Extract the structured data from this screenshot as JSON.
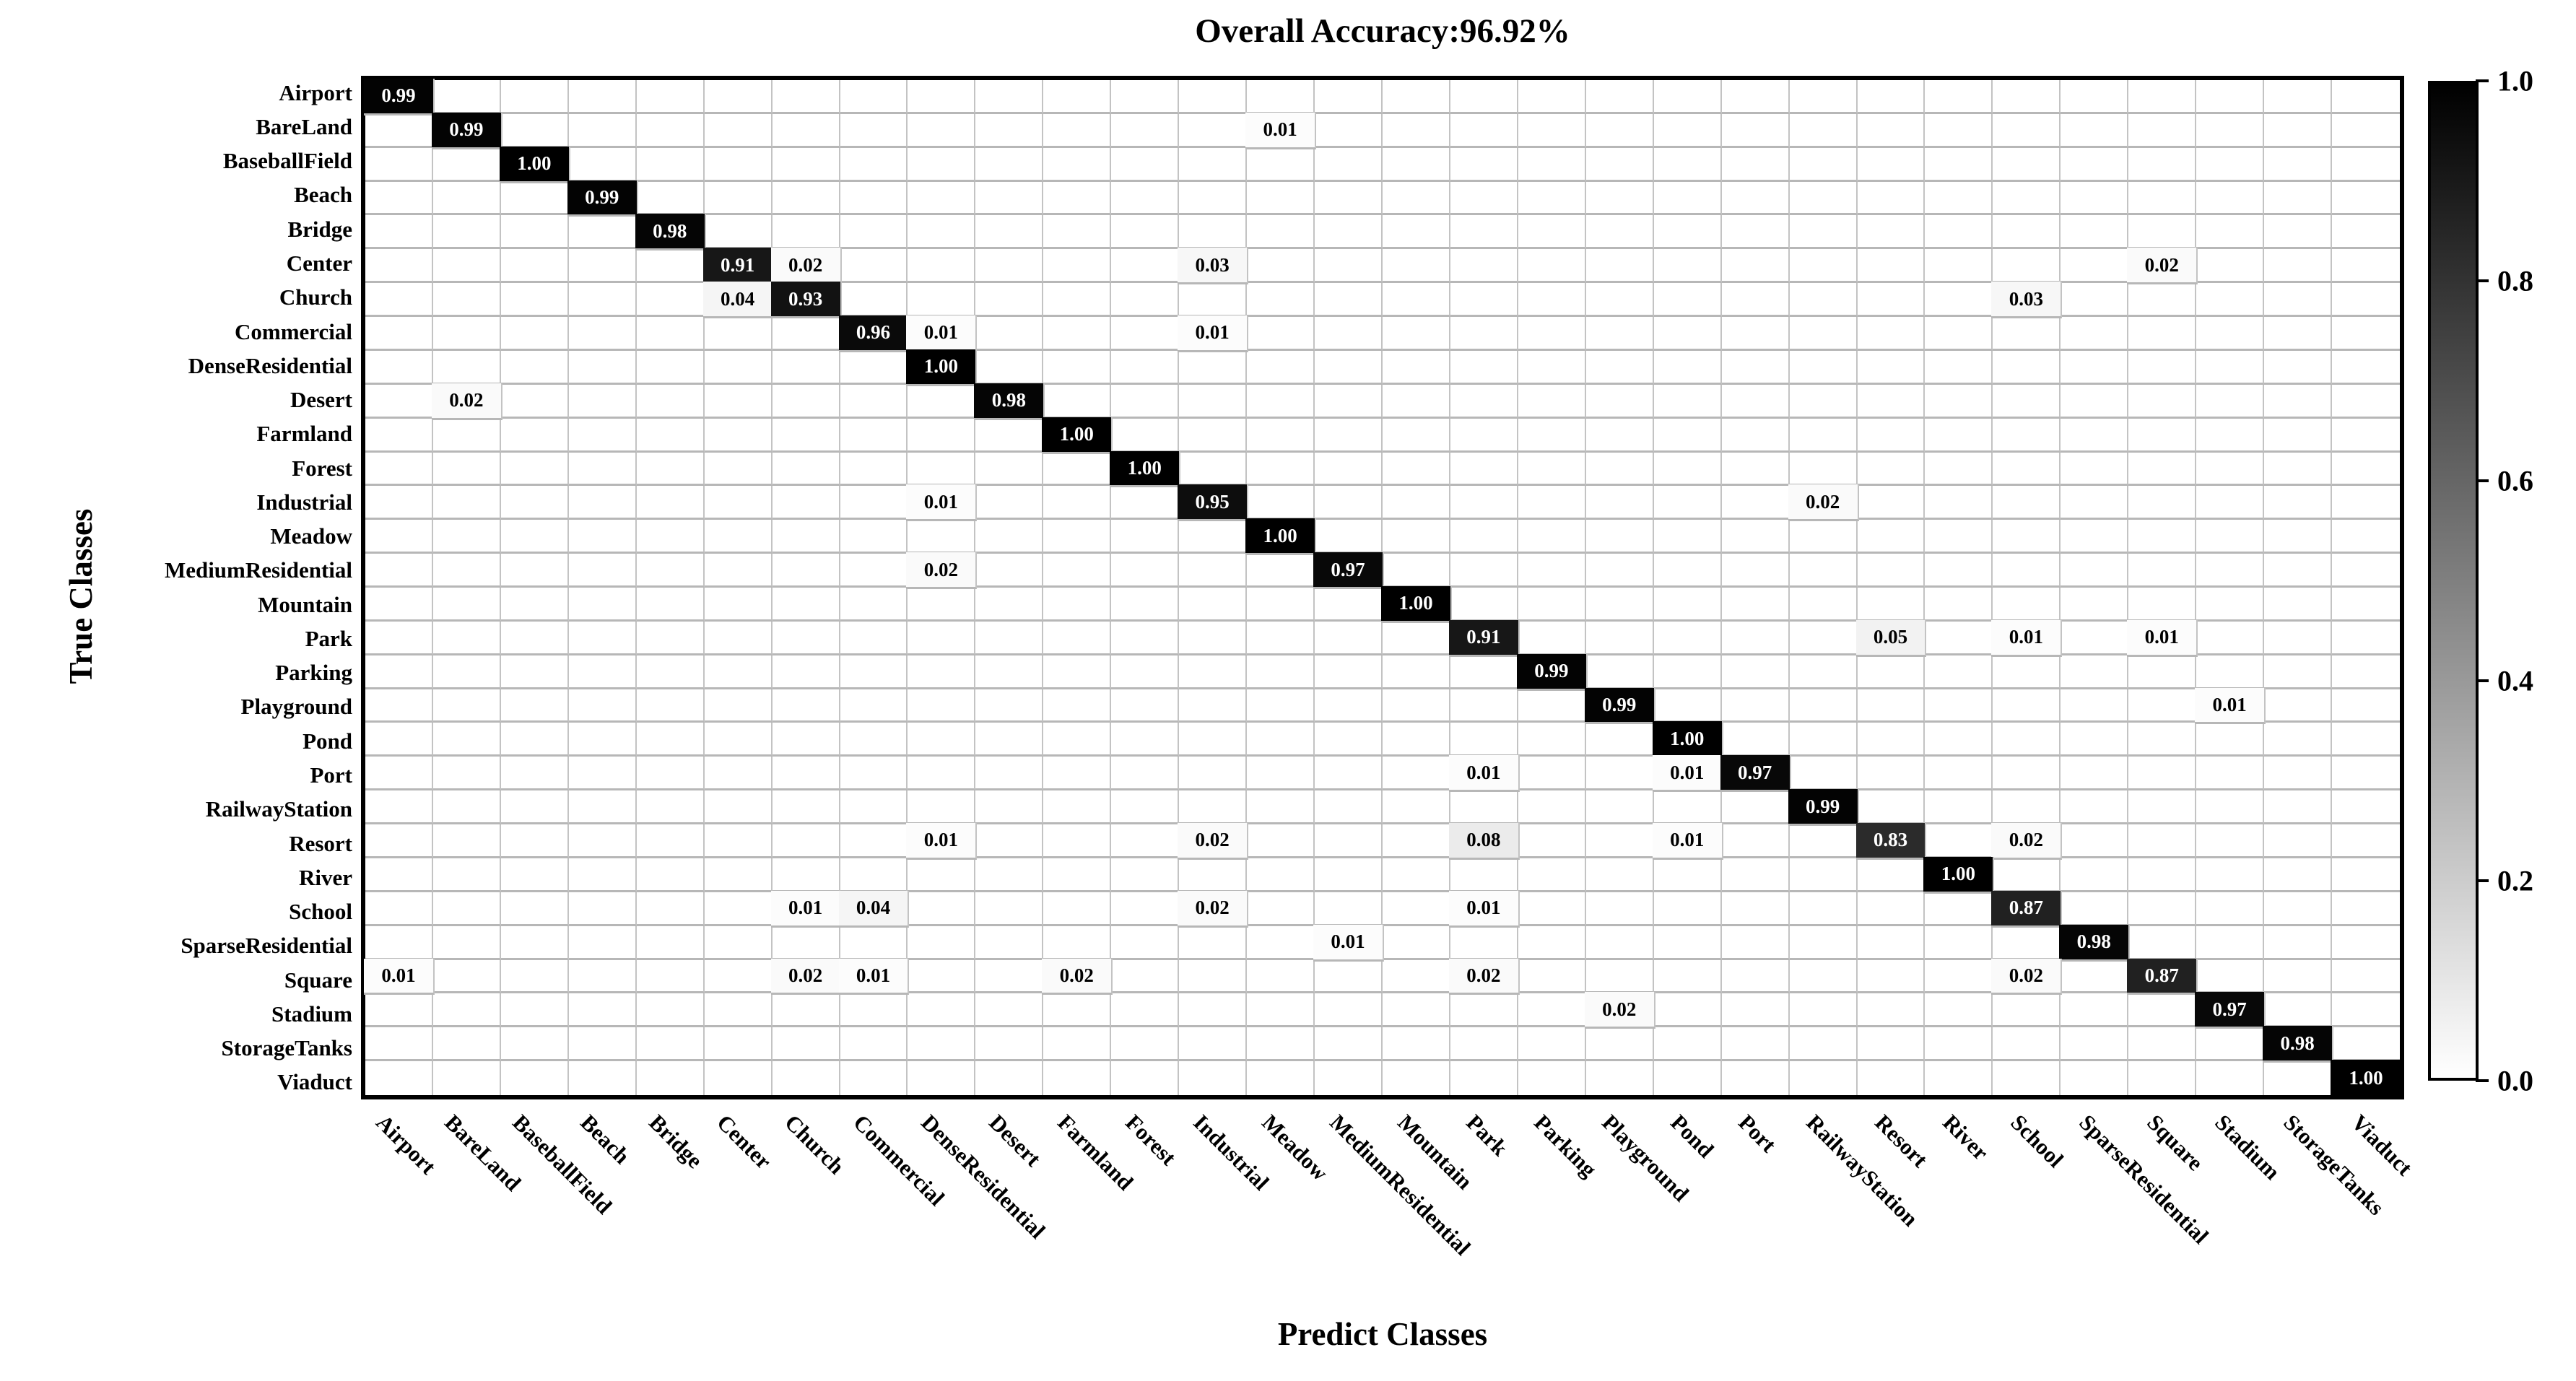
{
  "chart_data": {
    "type": "heatmap",
    "title": "Overall Accuracy:96.92%",
    "xlabel": "Predict Classes",
    "ylabel": "True Classes",
    "colormap": "Greys",
    "value_range": [
      0,
      1
    ],
    "grid": true,
    "gridline_color": "#bdbdbd",
    "border_color": "#000000",
    "colorbar": {
      "position": "right",
      "ticks": [
        "1.0",
        "0.8",
        "0.6",
        "0.4",
        "0.2",
        "0.0"
      ],
      "top_color": "#000000",
      "bottom_color": "#ffffff"
    },
    "classes": [
      "Airport",
      "BareLand",
      "BaseballField",
      "Beach",
      "Bridge",
      "Center",
      "Church",
      "Commercial",
      "DenseResidential",
      "Desert",
      "Farmland",
      "Forest",
      "Industrial",
      "Meadow",
      "MediumResidential",
      "Mountain",
      "Park",
      "Parking",
      "Playground",
      "Pond",
      "Port",
      "RailwayStation",
      "Resort",
      "River",
      "School",
      "SparseResidential",
      "Square",
      "Stadium",
      "StorageTanks",
      "Viaduct"
    ],
    "matrix": {
      "Airport": {
        "Airport": 0.99
      },
      "BareLand": {
        "BareLand": 0.99,
        "Meadow": 0.01
      },
      "BaseballField": {
        "BaseballField": 1.0
      },
      "Beach": {
        "Beach": 0.99
      },
      "Bridge": {
        "Bridge": 0.98
      },
      "Center": {
        "Center": 0.91,
        "Church": 0.02,
        "Industrial": 0.03,
        "Square": 0.02
      },
      "Church": {
        "Center": 0.04,
        "Church": 0.93,
        "School": 0.03
      },
      "Commercial": {
        "Commercial": 0.96,
        "DenseResidential": 0.01,
        "Industrial": 0.01
      },
      "DenseResidential": {
        "DenseResidential": 1.0
      },
      "Desert": {
        "BareLand": 0.02,
        "Desert": 0.98
      },
      "Farmland": {
        "Farmland": 1.0
      },
      "Forest": {
        "Forest": 1.0
      },
      "Industrial": {
        "DenseResidential": 0.01,
        "Industrial": 0.95,
        "RailwayStation": 0.02
      },
      "Meadow": {
        "Meadow": 1.0
      },
      "MediumResidential": {
        "DenseResidential": 0.02,
        "MediumResidential": 0.97
      },
      "Mountain": {
        "Mountain": 1.0
      },
      "Park": {
        "Park": 0.91,
        "Resort": 0.05,
        "School": 0.01,
        "Square": 0.01
      },
      "Parking": {
        "Parking": 0.99
      },
      "Playground": {
        "Playground": 0.99,
        "Stadium": 0.01
      },
      "Pond": {
        "Pond": 1.0
      },
      "Port": {
        "Park": 0.01,
        "Pond": 0.01,
        "Port": 0.97
      },
      "RailwayStation": {
        "RailwayStation": 0.99
      },
      "Resort": {
        "DenseResidential": 0.01,
        "Industrial": 0.02,
        "Park": 0.08,
        "Pond": 0.01,
        "Resort": 0.83,
        "School": 0.02
      },
      "River": {
        "River": 1.0
      },
      "School": {
        "Church": 0.01,
        "Commercial": 0.04,
        "Industrial": 0.02,
        "Park": 0.01,
        "School": 0.87
      },
      "SparseResidential": {
        "MediumResidential": 0.01,
        "SparseResidential": 0.98
      },
      "Square": {
        "Airport": 0.01,
        "Church": 0.02,
        "Commercial": 0.01,
        "Farmland": 0.02,
        "Park": 0.02,
        "School": 0.02,
        "Square": 0.87
      },
      "Stadium": {
        "Playground": 0.02,
        "Stadium": 0.97
      },
      "StorageTanks": {
        "StorageTanks": 0.98
      },
      "Viaduct": {
        "Viaduct": 1.0
      }
    }
  }
}
